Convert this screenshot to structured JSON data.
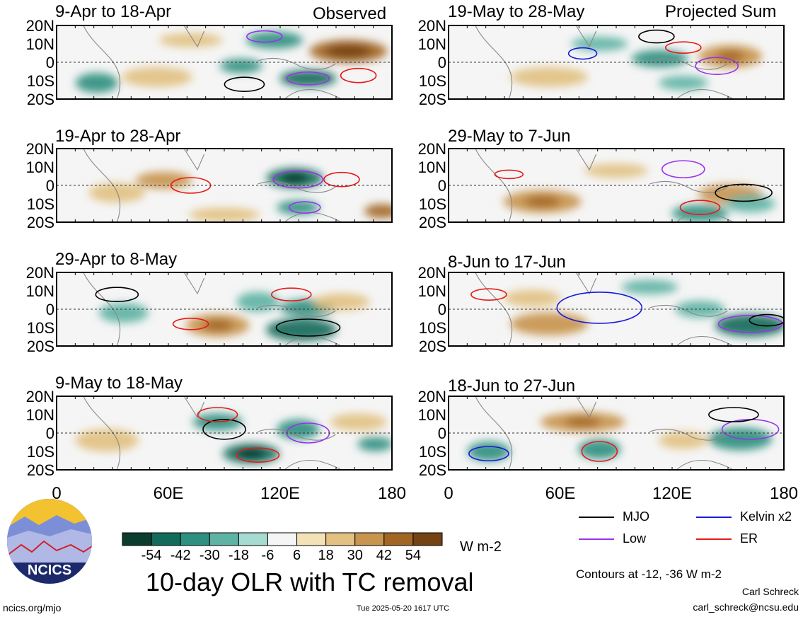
{
  "header": {
    "left_label": "Observed",
    "right_label": "Projected Sum"
  },
  "panels": [
    {
      "period": "9-Apr to 18-Apr",
      "column": "observed"
    },
    {
      "period": "19-Apr to 28-Apr",
      "column": "observed"
    },
    {
      "period": "29-Apr to 8-May",
      "column": "observed"
    },
    {
      "period": "9-May to 18-May",
      "column": "observed"
    },
    {
      "period": "19-May to 28-May",
      "column": "projected"
    },
    {
      "period": "29-May to 7-Jun",
      "column": "projected"
    },
    {
      "period": "8-Jun to 17-Jun",
      "column": "projected"
    },
    {
      "period": "18-Jun to 27-Jun",
      "column": "projected"
    }
  ],
  "axes": {
    "lat_ticks": [
      "20N",
      "10N",
      "0",
      "10S",
      "20S"
    ],
    "lon_ticks": [
      "0",
      "60E",
      "120E",
      "180"
    ]
  },
  "colorbar": {
    "labels": [
      "-54",
      "-42",
      "-30",
      "-18",
      "-6",
      "6",
      "18",
      "30",
      "42",
      "54"
    ],
    "colors": [
      "#0b3d2e",
      "#136b5c",
      "#2f8f80",
      "#5fb3a5",
      "#a6dbd2",
      "#f5f5f5",
      "#f3e2b8",
      "#e2c182",
      "#c8954f",
      "#a26624",
      "#754214"
    ],
    "unit": "W m-2"
  },
  "title": "10-day OLR with TC removal",
  "legend": {
    "items": [
      {
        "label": "MJO",
        "color": "#000000"
      },
      {
        "label": "Kelvin x2",
        "color": "#1a1adb"
      },
      {
        "label": "Low",
        "color": "#9933ee"
      },
      {
        "label": "ER",
        "color": "#e61a1a"
      }
    ]
  },
  "contours_note": "Contours at -12, -36 W m-2",
  "logo": {
    "text": "NCICS"
  },
  "footer": {
    "url": "ncics.org/mjo",
    "timestamp": "Tue 2025-05-20 1617 UTC",
    "author": "Carl Schreck",
    "email": "carl_schreck@ncsu.edu"
  }
}
